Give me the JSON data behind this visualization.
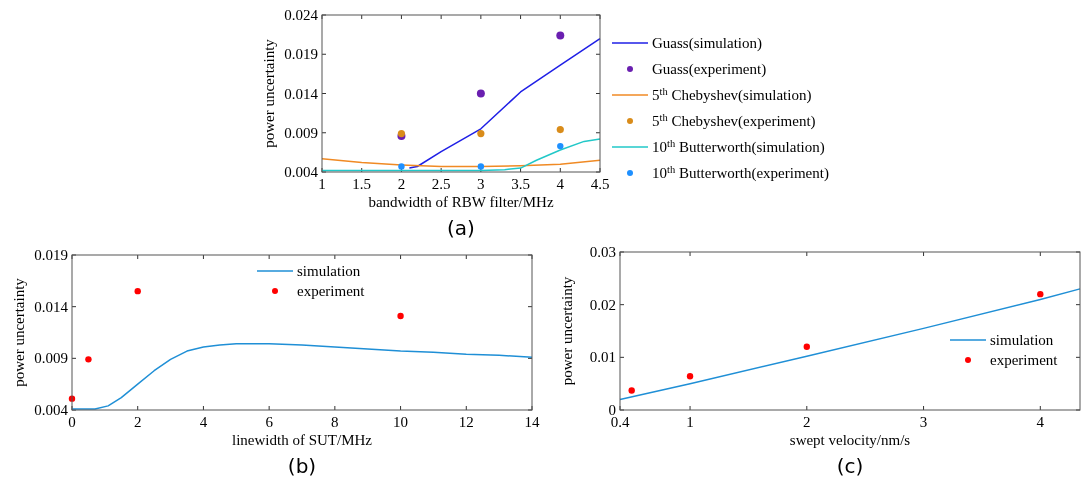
{
  "chart_data": [
    {
      "type": "line",
      "xlabel": "bandwidth of RBW filter/MHz",
      "ylabel": "power uncertainty",
      "annotations": [
        "(a)"
      ],
      "xlim": [
        1,
        4.5
      ],
      "xticks": [
        1,
        1.5,
        2,
        2.5,
        3,
        3.5,
        4,
        4.5
      ],
      "ylim": [
        0.004,
        0.024
      ],
      "yticks": [
        0.004,
        0.009,
        0.014,
        0.019,
        0.024
      ],
      "legend": "right",
      "grid": false,
      "series": [
        {
          "name": "Guass(simulation)",
          "type": "line",
          "color": "#1f1fe6",
          "x": [
            2.1,
            2.2,
            2.5,
            3,
            3.5,
            4,
            4.5
          ],
          "values": [
            0.0045,
            0.0047,
            0.0066,
            0.0095,
            0.0142,
            0.0176,
            0.021
          ]
        },
        {
          "name": "Guass(experiment)",
          "type": "scatter",
          "marker": "circle",
          "color": "#6a1fb0",
          "x": [
            2,
            3,
            4
          ],
          "values": [
            0.0086,
            0.014,
            0.0214
          ]
        },
        {
          "name": "5$^{th}$ Chebyshev(simulation)",
          "type": "line",
          "color": "#f08a24",
          "x": [
            1,
            1.5,
            2,
            2.5,
            3,
            3.5,
            4,
            4.5
          ],
          "values": [
            0.0057,
            0.0052,
            0.0049,
            0.0047,
            0.0047,
            0.0048,
            0.005,
            0.0055
          ]
        },
        {
          "name": "5$^{th}$ Chebyshev(experiment)",
          "type": "scatter",
          "marker": "circle",
          "color": "#d98c1a",
          "x": [
            2,
            3,
            4
          ],
          "values": [
            0.0089,
            0.0089,
            0.0094
          ]
        },
        {
          "name": "10$^{th}$ Butterworth(simulation)",
          "type": "line",
          "color": "#22c8c8",
          "x": [
            1,
            2,
            3,
            3.3,
            3.5,
            3.7,
            4,
            4.3,
            4.5
          ],
          "values": [
            0.0042,
            0.0042,
            0.0042,
            0.0043,
            0.0045,
            0.0055,
            0.0068,
            0.0079,
            0.0082
          ]
        },
        {
          "name": "10$^{th}$ Butterworth(experiment)",
          "type": "scatter",
          "marker": "circle",
          "color": "#1e90ff",
          "x": [
            2,
            3,
            4
          ],
          "values": [
            0.0047,
            0.0047,
            0.0073
          ]
        }
      ]
    },
    {
      "type": "line",
      "xlabel": "linewidth of SUT/MHz",
      "ylabel": "power uncertainty",
      "annotations": [
        "(b)"
      ],
      "xlim": [
        0,
        14
      ],
      "xticks": [
        0,
        2,
        4,
        6,
        8,
        10,
        12,
        14
      ],
      "ylim": [
        0.004,
        0.019
      ],
      "yticks": [
        0.004,
        0.009,
        0.014,
        0.019
      ],
      "legend": "top",
      "grid": false,
      "series": [
        {
          "name": "simulation",
          "type": "line",
          "color": "#1f8fd6",
          "x": [
            0,
            0.7,
            1.1,
            1.5,
            2,
            2.5,
            3,
            3.5,
            4,
            4.5,
            5,
            6,
            7,
            8,
            9,
            10,
            11,
            12,
            13,
            14
          ],
          "values": [
            0.0041,
            0.0041,
            0.0044,
            0.0052,
            0.0065,
            0.0078,
            0.0089,
            0.0097,
            0.0101,
            0.0103,
            0.0104,
            0.0104,
            0.0103,
            0.0101,
            0.0099,
            0.0097,
            0.0096,
            0.0094,
            0.0093,
            0.0091
          ]
        },
        {
          "name": "experiment",
          "type": "scatter",
          "marker": "circle",
          "color": "#ff0000",
          "x": [
            0,
            0.5,
            2,
            10
          ],
          "values": [
            0.0051,
            0.0089,
            0.0155,
            0.0131
          ]
        }
      ]
    },
    {
      "type": "line",
      "xlabel": "swept velocity/nm/s",
      "ylabel": "power uncertainty",
      "annotations": [
        "(c)"
      ],
      "xlim": [
        0.4,
        4.34
      ],
      "xticks": [
        0.4,
        1,
        2,
        3,
        4
      ],
      "ylim": [
        0,
        0.03
      ],
      "yticks": [
        0,
        0.01,
        0.02,
        0.03
      ],
      "legend": "bottom right",
      "grid": false,
      "series": [
        {
          "name": "simulation",
          "type": "line",
          "color": "#1f8fd6",
          "x": [
            0.4,
            1,
            2,
            3,
            4,
            4.34
          ],
          "values": [
            0.002,
            0.005,
            0.0102,
            0.0155,
            0.021,
            0.023
          ]
        },
        {
          "name": "experiment",
          "type": "scatter",
          "marker": "circle",
          "color": "#ff0000",
          "x": [
            0.5,
            1,
            2,
            4
          ],
          "values": [
            0.0037,
            0.0064,
            0.012,
            0.022
          ]
        }
      ]
    }
  ]
}
